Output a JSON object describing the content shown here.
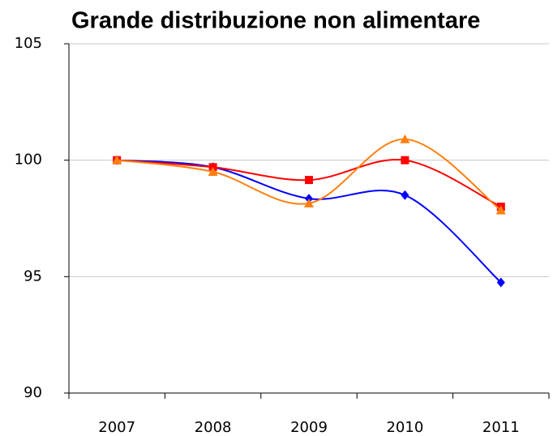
{
  "chart_data": {
    "type": "line",
    "title": "Grande distribuzione non alimentare",
    "categories": [
      "2007",
      "2008",
      "2009",
      "2010",
      "2011"
    ],
    "series": [
      {
        "color": "#0000ff",
        "marker": "diamond",
        "values": [
          100,
          99.7,
          98.35,
          98.5,
          94.75
        ]
      },
      {
        "color": "#ff0000",
        "marker": "square",
        "values": [
          100,
          99.7,
          99.15,
          100,
          98.0
        ]
      },
      {
        "color": "#ff7f0e",
        "marker": "triangle",
        "values": [
          100,
          99.5,
          98.15,
          100.9,
          97.85
        ]
      }
    ],
    "smooth": true,
    "ylim": [
      90,
      105
    ],
    "yticks": [
      90,
      95,
      100,
      105
    ],
    "grid": true
  }
}
